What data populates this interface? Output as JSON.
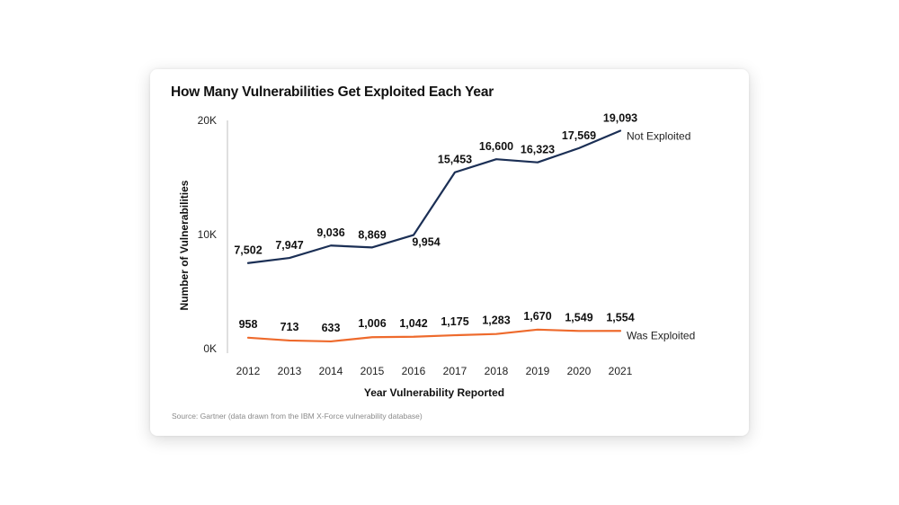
{
  "chart_data": {
    "type": "line",
    "title": "How Many Vulnerabilities Get Exploited Each Year",
    "xlabel": "Year Vulnerability Reported",
    "ylabel": "Number of Vulnerabilities",
    "ylim": [
      0,
      20000
    ],
    "yticks": [
      {
        "value": 0,
        "label": "0K"
      },
      {
        "value": 10000,
        "label": "10K"
      },
      {
        "value": 20000,
        "label": "20K"
      }
    ],
    "categories": [
      "2012",
      "2013",
      "2014",
      "2015",
      "2016",
      "2017",
      "2018",
      "2019",
      "2020",
      "2021"
    ],
    "series": [
      {
        "name": "Not Exploited",
        "color": "#1b2f55",
        "values": [
          7502,
          7947,
          9036,
          8869,
          9954,
          15453,
          16600,
          16323,
          17569,
          19093
        ],
        "labels": [
          "7,502",
          "7,947",
          "9,036",
          "8,869",
          "9,954",
          "15,453",
          "16,600",
          "16,323",
          "17,569",
          "19,093"
        ]
      },
      {
        "name": "Was Exploited",
        "color": "#ee6a2c",
        "values": [
          958,
          713,
          633,
          1006,
          1042,
          1175,
          1283,
          1670,
          1549,
          1554
        ],
        "labels": [
          "958",
          "713",
          "633",
          "1,006",
          "1,042",
          "1,175",
          "1,283",
          "1,670",
          "1,549",
          "1,554"
        ]
      }
    ],
    "grid": false,
    "legend": "inline at line ends"
  },
  "source_note": "Source: Gartner (data drawn from the IBM X-Force vulnerability database)"
}
